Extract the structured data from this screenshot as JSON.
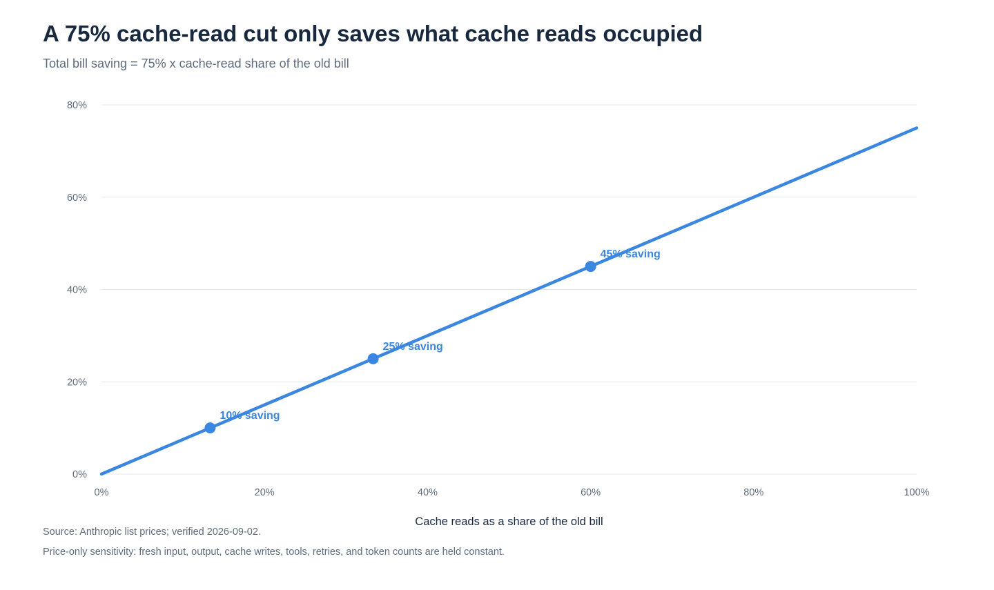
{
  "page": {
    "title": "A 75% cache-read cut only saves what cache reads occupied",
    "subtitle": "Total bill saving = 75% x cache-read share of the old bill",
    "source": "Source: Anthropic list prices; verified 2026-09-02.",
    "note": "Price-only sensitivity: fresh input, output, cache writes, tools, retries, and token counts are held constant."
  },
  "chart_data": {
    "type": "line",
    "title": "A 75% cache-read cut only saves what cache reads occupied",
    "subtitle": "Total bill saving = 75% x cache-read share of the old bill",
    "xlabel": "Cache reads as a share of the old bill",
    "ylabel": "",
    "xlim": [
      0,
      100
    ],
    "ylim": [
      0,
      80
    ],
    "x_ticks": [
      0,
      20,
      40,
      60,
      80,
      100
    ],
    "y_ticks": [
      0,
      20,
      40,
      60,
      80
    ],
    "x_tick_labels": [
      "0%",
      "20%",
      "40%",
      "60%",
      "80%",
      "100%"
    ],
    "y_tick_labels": [
      "0%",
      "20%",
      "40%",
      "60%",
      "80%"
    ],
    "grid": "horizontal",
    "legend": "none",
    "line_color": "#3a86e0",
    "series": [
      {
        "x": [
          0,
          100
        ],
        "y": [
          0,
          75
        ]
      }
    ],
    "highlights": [
      {
        "x": 13.33,
        "y": 10,
        "label": "10% saving"
      },
      {
        "x": 33.33,
        "y": 25,
        "label": "25% saving"
      },
      {
        "x": 60,
        "y": 45,
        "label": "45% saving"
      }
    ]
  }
}
